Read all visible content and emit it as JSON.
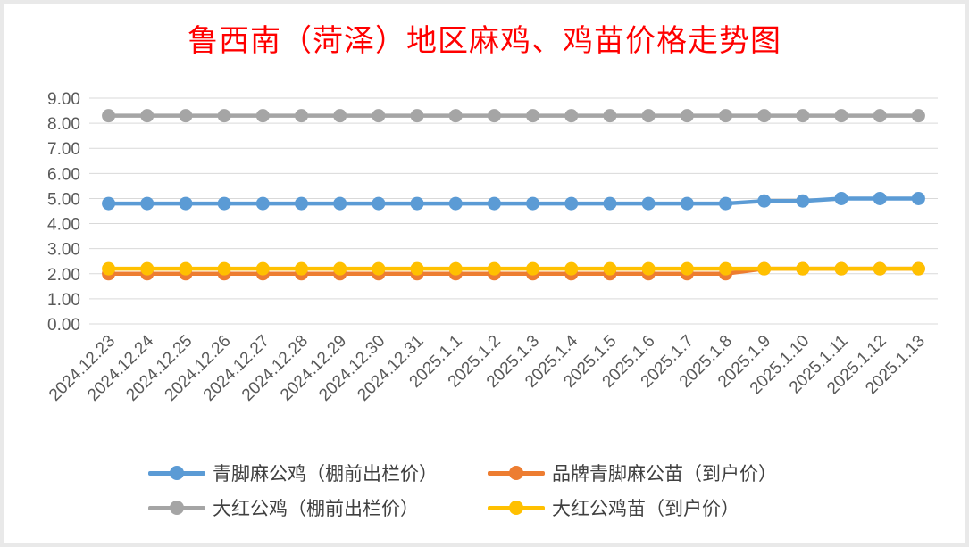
{
  "chart_data": {
    "type": "line",
    "title": "鲁西南（菏泽）地区麻鸡、鸡苗价格走势图",
    "xlabel": "",
    "ylabel": "",
    "ylim": [
      0,
      9
    ],
    "yticks": [
      "0.00",
      "1.00",
      "2.00",
      "3.00",
      "4.00",
      "5.00",
      "6.00",
      "7.00",
      "8.00",
      "9.00"
    ],
    "grid": true,
    "legend_position": "bottom",
    "categories": [
      "2024.12.23",
      "2024.12.24",
      "2024.12.25",
      "2024.12.26",
      "2024.12.27",
      "2024.12.28",
      "2024.12.29",
      "2024.12.30",
      "2024.12.31",
      "2025.1.1",
      "2025.1.2",
      "2025.1.3",
      "2025.1.4",
      "2025.1.5",
      "2025.1.6",
      "2025.1.7",
      "2025.1.8",
      "2025.1.9",
      "2025.1.10",
      "2025.1.11",
      "2025.1.12",
      "2025.1.13"
    ],
    "series": [
      {
        "name": "大红公鸡（棚前出栏价）",
        "color": "#a5a5a5",
        "values": [
          8.3,
          8.3,
          8.3,
          8.3,
          8.3,
          8.3,
          8.3,
          8.3,
          8.3,
          8.3,
          8.3,
          8.3,
          8.3,
          8.3,
          8.3,
          8.3,
          8.3,
          8.3,
          8.3,
          8.3,
          8.3,
          8.3
        ]
      },
      {
        "name": "青脚麻公鸡（棚前出栏价）",
        "color": "#5b9bd5",
        "values": [
          4.8,
          4.8,
          4.8,
          4.8,
          4.8,
          4.8,
          4.8,
          4.8,
          4.8,
          4.8,
          4.8,
          4.8,
          4.8,
          4.8,
          4.8,
          4.8,
          4.8,
          4.9,
          4.9,
          5.0,
          5.0,
          5.0
        ]
      },
      {
        "name": "品牌青脚麻公苗（到户价）",
        "color": "#ed7d31",
        "values": [
          2.0,
          2.0,
          2.0,
          2.0,
          2.0,
          2.0,
          2.0,
          2.0,
          2.0,
          2.0,
          2.0,
          2.0,
          2.0,
          2.0,
          2.0,
          2.0,
          2.0,
          2.2,
          2.2,
          2.2,
          2.2,
          2.2
        ]
      },
      {
        "name": "大红公鸡苗（到户价）",
        "color": "#ffc000",
        "values": [
          2.2,
          2.2,
          2.2,
          2.2,
          2.2,
          2.2,
          2.2,
          2.2,
          2.2,
          2.2,
          2.2,
          2.2,
          2.2,
          2.2,
          2.2,
          2.2,
          2.2,
          2.2,
          2.2,
          2.2,
          2.2,
          2.2
        ]
      }
    ],
    "legend": [
      {
        "label": "青脚麻公鸡（棚前出栏价）",
        "color": "#5b9bd5"
      },
      {
        "label": "品牌青脚麻公苗（到户价）",
        "color": "#ed7d31"
      },
      {
        "label": "大红公鸡（棚前出栏价）",
        "color": "#a5a5a5"
      },
      {
        "label": "大红公鸡苗（到户价）",
        "color": "#ffc000"
      }
    ]
  }
}
